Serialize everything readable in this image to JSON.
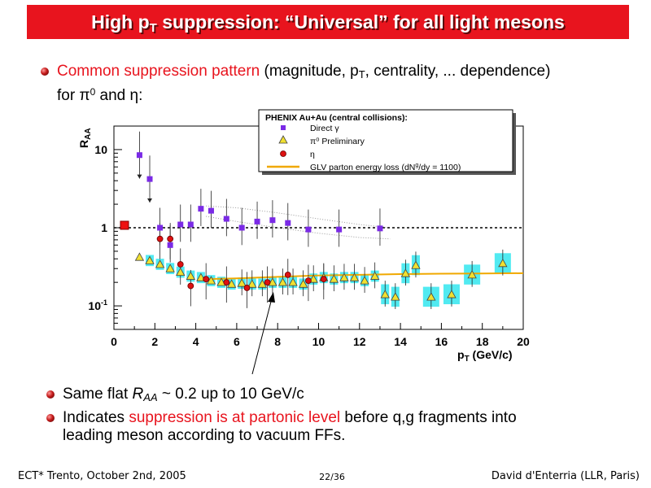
{
  "title": {
    "main": "High p",
    "sub": "T",
    "rest": " suppression: “Universal” for all light mesons"
  },
  "bullet1": {
    "highlight": "Common suppression pattern",
    "text1": " (magnitude, p",
    "text1_sub": "T",
    "text2": ", centrality, ... dependence)",
    "line2_pre": "for ",
    "pi": "π",
    "pi_sup": "0",
    "line2_mid": " and ",
    "eta": "η",
    "line2_end": ":"
  },
  "bullet2": {
    "pre": "Same flat ",
    "raa": "R",
    "raa_sub": "AA",
    "post": " ~ 0.2 up to 10 GeV/c"
  },
  "bullet3": {
    "pre": "Indicates ",
    "highlight": "suppression is at partonic level",
    "post": " before q,g fragments into",
    "line2": "leading meson according to vacuum FFs."
  },
  "footer": {
    "left": "ECT* Trento, October 2nd, 2005",
    "center": "22/36",
    "right": "David d'Enterria (LLR, Paris)"
  },
  "colors": {
    "accent": "#e8141e",
    "direct": "#7a2ae6",
    "pi0": "#f0e030",
    "eta": "#dd1111",
    "glv": "#f0a800",
    "band": "#33e6ee"
  },
  "chart_data": {
    "type": "scatter",
    "legend_title": "PHENIX Au+Au (central collisions):",
    "legend_position": "top-right",
    "xlabel": "p",
    "xlabel_sub": "T",
    "xlabel_rest": " (GeV/c)",
    "ylabel": "R",
    "ylabel_sub": "AA",
    "xlim": [
      0,
      20
    ],
    "ylim": [
      0.05,
      20
    ],
    "yscale": "log",
    "xticks": [
      "0",
      "2",
      "4",
      "6",
      "8",
      "10",
      "12",
      "14",
      "16",
      "18",
      "20"
    ],
    "yticks": [
      "10",
      "1",
      "10-1"
    ],
    "reference_line": 1,
    "series": [
      {
        "name": "Direct γ",
        "marker": "square",
        "points": [
          [
            1.25,
            8.5
          ],
          [
            1.75,
            4.2
          ],
          [
            2.25,
            1.0
          ],
          [
            2.75,
            0.6
          ],
          [
            3.25,
            1.1
          ],
          [
            3.75,
            1.1
          ],
          [
            4.25,
            1.75
          ],
          [
            4.75,
            1.65
          ],
          [
            5.5,
            1.3
          ],
          [
            6.25,
            1.0
          ],
          [
            7.0,
            1.2
          ],
          [
            7.75,
            1.25
          ],
          [
            8.5,
            1.15
          ],
          [
            9.5,
            0.95
          ],
          [
            11.0,
            0.95
          ],
          [
            13.0,
            0.98
          ]
        ]
      },
      {
        "name": "π⁰ Preliminary",
        "marker": "triangle",
        "points": [
          [
            1.25,
            0.42
          ],
          [
            1.75,
            0.38
          ],
          [
            2.25,
            0.34
          ],
          [
            2.75,
            0.3
          ],
          [
            3.25,
            0.27
          ],
          [
            3.75,
            0.24
          ],
          [
            4.25,
            0.23
          ],
          [
            4.75,
            0.21
          ],
          [
            5.25,
            0.2
          ],
          [
            5.75,
            0.19
          ],
          [
            6.25,
            0.195
          ],
          [
            6.75,
            0.19
          ],
          [
            7.25,
            0.19
          ],
          [
            7.75,
            0.2
          ],
          [
            8.25,
            0.2
          ],
          [
            8.75,
            0.2
          ],
          [
            9.25,
            0.19
          ],
          [
            9.75,
            0.22
          ],
          [
            10.25,
            0.23
          ],
          [
            10.75,
            0.22
          ],
          [
            11.25,
            0.23
          ],
          [
            11.75,
            0.23
          ],
          [
            12.25,
            0.21
          ],
          [
            12.75,
            0.24
          ],
          [
            13.25,
            0.14
          ],
          [
            13.75,
            0.13
          ],
          [
            14.25,
            0.26
          ],
          [
            14.75,
            0.33
          ],
          [
            15.5,
            0.13
          ],
          [
            16.5,
            0.14
          ],
          [
            17.5,
            0.25
          ],
          [
            19.0,
            0.35
          ]
        ]
      },
      {
        "name": "η",
        "marker": "circle",
        "points": [
          [
            2.25,
            0.72
          ],
          [
            2.75,
            0.72
          ],
          [
            3.25,
            0.34
          ],
          [
            3.75,
            0.18
          ],
          [
            4.5,
            0.22
          ],
          [
            5.5,
            0.2
          ],
          [
            6.5,
            0.17
          ],
          [
            7.5,
            0.2
          ],
          [
            8.5,
            0.25
          ],
          [
            9.5,
            0.21
          ],
          [
            10.25,
            0.22
          ]
        ]
      },
      {
        "name": "GLV parton energy loss (dN",
        "name_sup": "g",
        "name_rest": "/dy = 1100)",
        "marker": "line",
        "points": [
          [
            4.5,
            0.22
          ],
          [
            6,
            0.225
          ],
          [
            8,
            0.235
          ],
          [
            10,
            0.245
          ],
          [
            12,
            0.25
          ],
          [
            14,
            0.255
          ],
          [
            16,
            0.258
          ],
          [
            18,
            0.26
          ],
          [
            20,
            0.262
          ]
        ]
      }
    ],
    "direct_theory_band": [
      [
        4.5,
        1.9
      ],
      [
        6,
        1.8
      ],
      [
        8,
        1.55
      ],
      [
        10,
        1.3
      ],
      [
        12,
        1.1
      ],
      [
        13.5,
        1.0
      ]
    ],
    "direct_theory_band_low": [
      [
        4.5,
        1.4
      ],
      [
        6,
        1.2
      ],
      [
        8,
        1.0
      ],
      [
        10,
        0.85
      ],
      [
        12,
        0.75
      ],
      [
        13.5,
        0.72
      ]
    ]
  }
}
